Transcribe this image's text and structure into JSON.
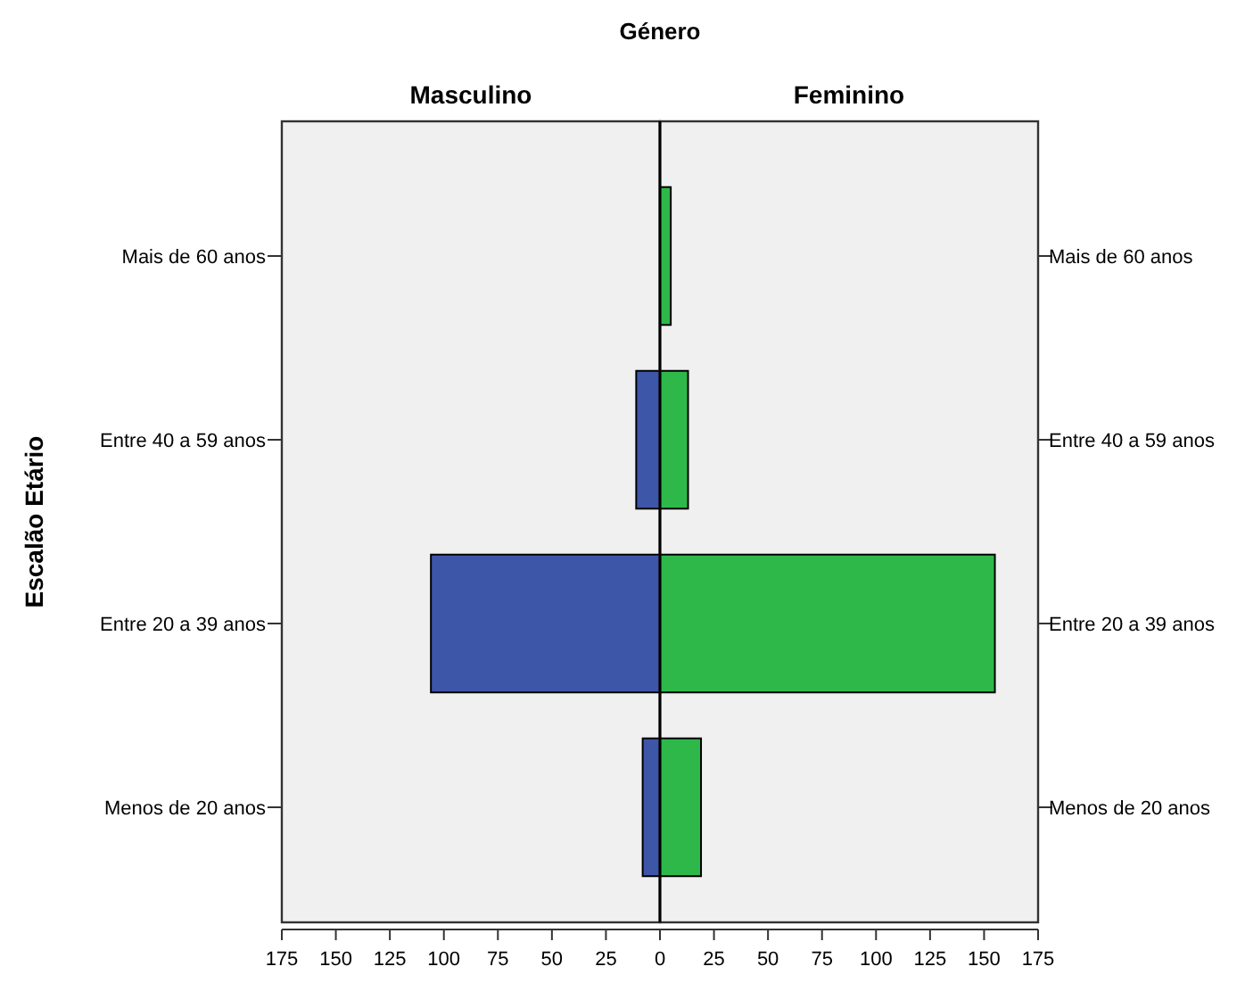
{
  "chart_data": [
    {
      "type": "bar",
      "orientation": "horizontal",
      "title": "Masculino",
      "ylabel": "Escalão Etário",
      "annotations": [
        "Género"
      ],
      "categories": [
        "Mais de 60 anos",
        "Entre 40 a 59 anos",
        "Entre 20 a 39 anos",
        "Menos de 20 anos"
      ],
      "values": [
        0,
        11,
        106,
        8
      ],
      "color": "#3d56a8",
      "xlim": [
        175,
        0
      ],
      "xticks": [
        175,
        150,
        125,
        100,
        75,
        50,
        25
      ],
      "grid": false
    },
    {
      "type": "bar",
      "orientation": "horizontal",
      "title": "Feminino",
      "categories": [
        "Mais de 60 anos",
        "Entre 40 a 59 anos",
        "Entre 20 a 39 anos",
        "Menos de 20 anos"
      ],
      "values": [
        5,
        13,
        155,
        19
      ],
      "color": "#2eb84a",
      "xlim": [
        0,
        175
      ],
      "xticks": [
        0,
        25,
        50,
        75,
        100,
        125,
        150,
        175
      ],
      "grid": false
    }
  ]
}
